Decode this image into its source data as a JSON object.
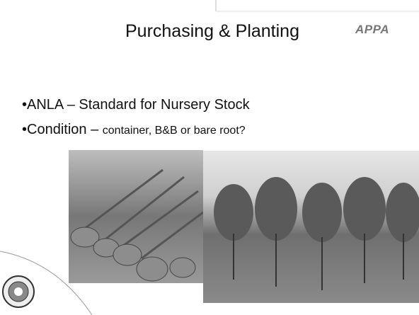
{
  "header": {
    "title": "Purchasing & Planting",
    "logo": "APPA"
  },
  "bullets": [
    {
      "bullet": "•",
      "lead": "ANLA – Standard for Nursery Stock"
    },
    {
      "bullet": "•",
      "lead": "Condition –",
      "detail": "container, B&B or bare root?"
    }
  ]
}
